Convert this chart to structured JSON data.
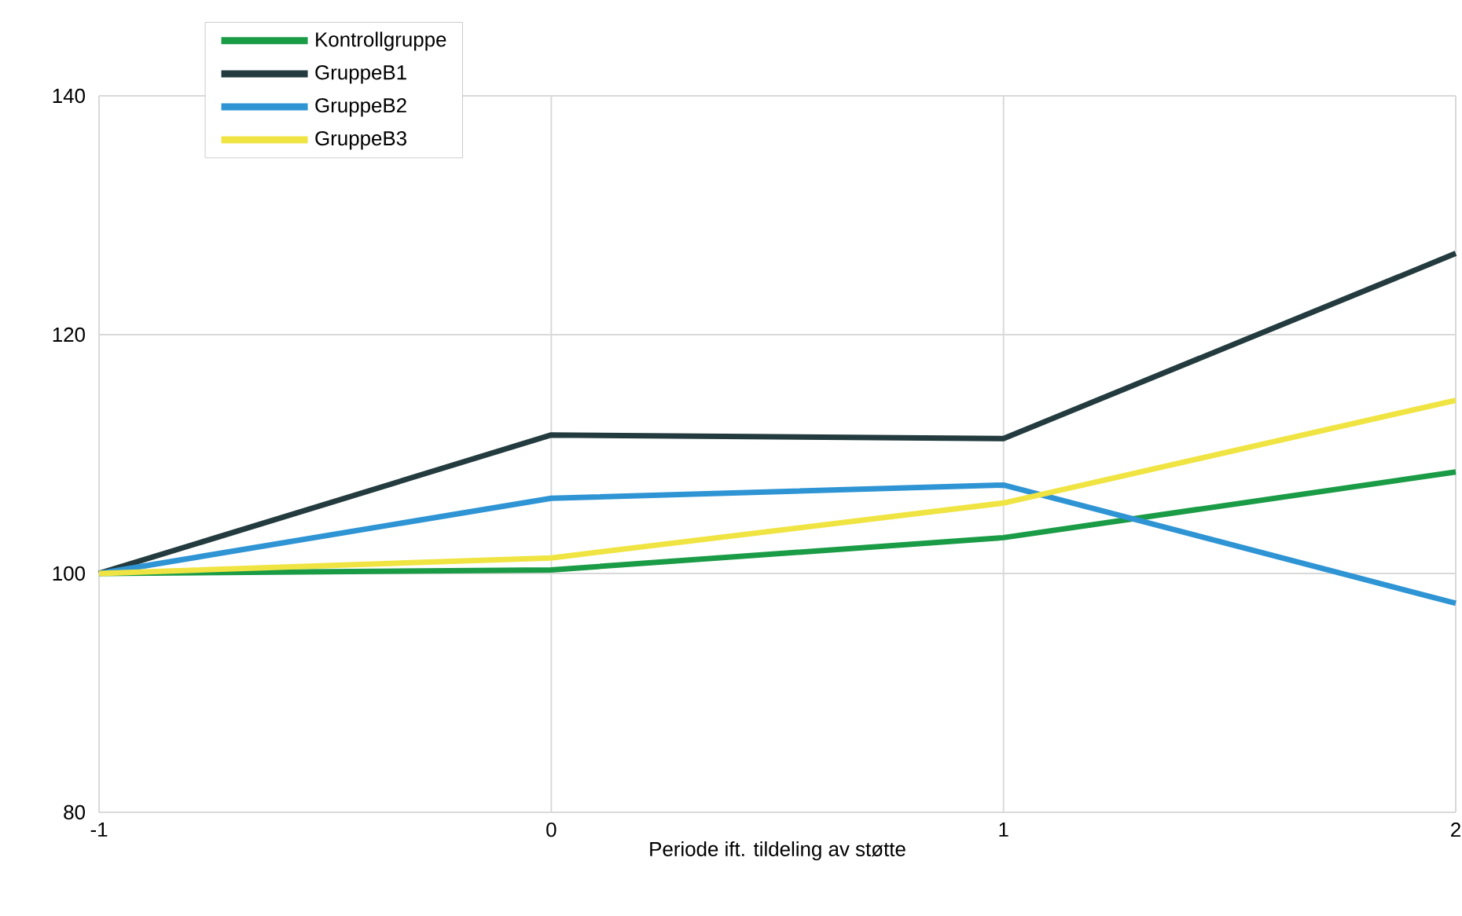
{
  "chart_data": {
    "type": "line",
    "xlabel": "Periode ift. tildeling av støtte",
    "x": [
      -1,
      0,
      1,
      2
    ],
    "series": [
      {
        "name": "Kontrollgruppe",
        "color": "#1a9b46",
        "values": [
          100,
          100.3,
          103.0,
          108.5
        ]
      },
      {
        "name": "GruppeB1",
        "color": "#233b3e",
        "values": [
          100,
          111.6,
          111.3,
          126.8
        ]
      },
      {
        "name": "GruppeB2",
        "color": "#2e94d4",
        "values": [
          100,
          106.3,
          107.4,
          97.5
        ]
      },
      {
        "name": "GruppeB3",
        "color": "#f0e442",
        "values": [
          100,
          101.3,
          105.9,
          114.5
        ]
      }
    ],
    "xlim": [
      -1,
      2
    ],
    "ylim": [
      80,
      140
    ],
    "xticks": [
      -1,
      0,
      1,
      2
    ],
    "yticks": [
      80,
      100,
      120,
      140
    ],
    "grid": true,
    "legend": "top left",
    "marker": "none",
    "line_style": "solid"
  }
}
